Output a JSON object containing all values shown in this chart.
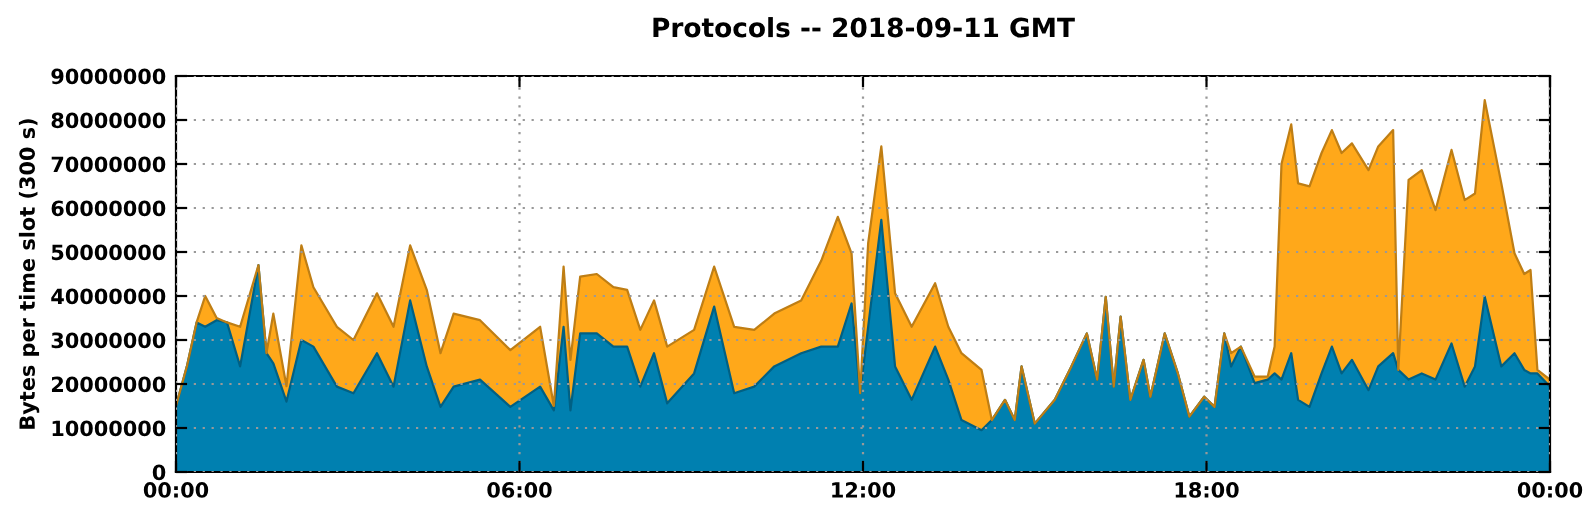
{
  "chart_data": {
    "type": "area",
    "stacked": true,
    "title": "Protocols -- 2018-09-11 GMT",
    "ylabel": "Bytes per time slot (300 s)",
    "x": [
      0.0,
      0.19,
      0.36,
      0.51,
      0.71,
      0.89,
      1.12,
      1.44,
      1.58,
      1.7,
      1.93,
      2.19,
      2.4,
      2.81,
      3.1,
      3.51,
      3.8,
      4.09,
      4.38,
      4.62,
      4.85,
      5.31,
      5.84,
      6.36,
      6.6,
      6.77,
      6.89,
      7.06,
      7.35,
      7.64,
      7.88,
      8.11,
      8.35,
      8.58,
      9.05,
      9.4,
      9.75,
      10.1,
      10.45,
      10.92,
      11.27,
      11.56,
      11.8,
      11.95,
      12.09,
      12.32,
      12.56,
      12.85,
      13.26,
      13.49,
      13.72,
      14.07,
      14.25,
      14.48,
      14.65,
      14.77,
      15.0,
      15.35,
      15.64,
      15.91,
      16.09,
      16.24,
      16.38,
      16.5,
      16.67,
      16.9,
      17.02,
      17.27,
      17.5,
      17.7,
      17.96,
      18.14,
      18.31,
      18.43,
      18.6,
      18.84,
      19.07,
      19.19,
      19.31,
      19.48,
      19.6,
      19.8,
      20.01,
      20.19,
      20.36,
      20.54,
      20.83,
      21.0,
      21.26,
      21.35,
      21.53,
      21.76,
      22.0,
      22.28,
      22.51,
      22.69,
      22.86,
      23.15,
      23.38,
      23.55,
      23.66,
      23.78,
      24.0
    ],
    "series": [
      {
        "color": "#0080b0",
        "values": [
          15000000,
          24000000,
          34000000,
          33000000,
          34500000,
          34000000,
          24000000,
          47000000,
          27000000,
          24700000,
          16000000,
          30000000,
          28500000,
          19400000,
          17900000,
          27000000,
          19400000,
          39000000,
          24000000,
          14800000,
          19400000,
          21000000,
          14800000,
          19400000,
          14000000,
          33000000,
          14000000,
          31500000,
          31500000,
          28500000,
          28500000,
          19400000,
          27000000,
          15600000,
          22400000,
          37600000,
          17900000,
          19400000,
          24000000,
          27000000,
          28500000,
          28500000,
          38300000,
          17900000,
          33000000,
          57300000,
          24000000,
          16400000,
          28500000,
          21000000,
          11800000,
          9500000,
          11800000,
          16400000,
          11800000,
          24000000,
          11000000,
          16400000,
          24000000,
          31500000,
          21000000,
          39800000,
          19400000,
          35300000,
          16400000,
          25500000,
          17100000,
          31500000,
          22400000,
          12600000,
          17100000,
          14800000,
          31500000,
          24000000,
          28500000,
          20200000,
          21000000,
          22400000,
          21000000,
          27000000,
          16400000,
          14800000,
          22400000,
          28500000,
          22400000,
          25500000,
          18600000,
          24000000,
          27000000,
          23200000,
          21000000,
          22400000,
          21000000,
          29200000,
          19400000,
          24000000,
          39800000,
          24000000,
          27000000,
          23200000,
          22400000,
          22400000,
          19400000
        ]
      },
      {
        "color": "#ffa81a",
        "values": [
          0,
          0,
          0,
          7000000,
          500000,
          0,
          9000000,
          0,
          0,
          11300000,
          3500000,
          21500000,
          13500000,
          13600000,
          12100000,
          13600000,
          13600000,
          12500000,
          17400000,
          12200000,
          16600000,
          13500000,
          12900000,
          13600000,
          1000000,
          13700000,
          11500000,
          12900000,
          13500000,
          13500000,
          12900000,
          12900000,
          12000000,
          12900000,
          9900000,
          9100000,
          15100000,
          12900000,
          12000000,
          12000000,
          19500000,
          29500000,
          11400000,
          0,
          19000000,
          16700000,
          16600000,
          16600000,
          14400000,
          12000000,
          15200000,
          13700000,
          0,
          0,
          0,
          0,
          0,
          0,
          0,
          0,
          0,
          0,
          0,
          0,
          0,
          0,
          0,
          0,
          0,
          0,
          0,
          0,
          0,
          3000000,
          0,
          1500000,
          700000,
          6100000,
          49000000,
          52000000,
          49200000,
          50100000,
          50100000,
          49200000,
          50100000,
          49200000,
          50000000,
          50000000,
          50700000,
          0,
          45400000,
          46200000,
          38500000,
          44000000,
          42400000,
          39300000,
          44700000,
          41600000,
          22700000,
          21800000,
          23500000,
          800000,
          1600000
        ]
      }
    ],
    "xlim": [
      0,
      24
    ],
    "xticks": [
      {
        "value": 0,
        "label": "00:00"
      },
      {
        "value": 6,
        "label": "06:00"
      },
      {
        "value": 12,
        "label": "12:00"
      },
      {
        "value": 18,
        "label": "18:00"
      },
      {
        "value": 24,
        "label": "00:00"
      }
    ],
    "ylim": [
      0,
      90000000
    ],
    "yticks": [
      0,
      10000000,
      20000000,
      30000000,
      40000000,
      50000000,
      60000000,
      70000000,
      80000000,
      90000000
    ],
    "grid": true
  }
}
